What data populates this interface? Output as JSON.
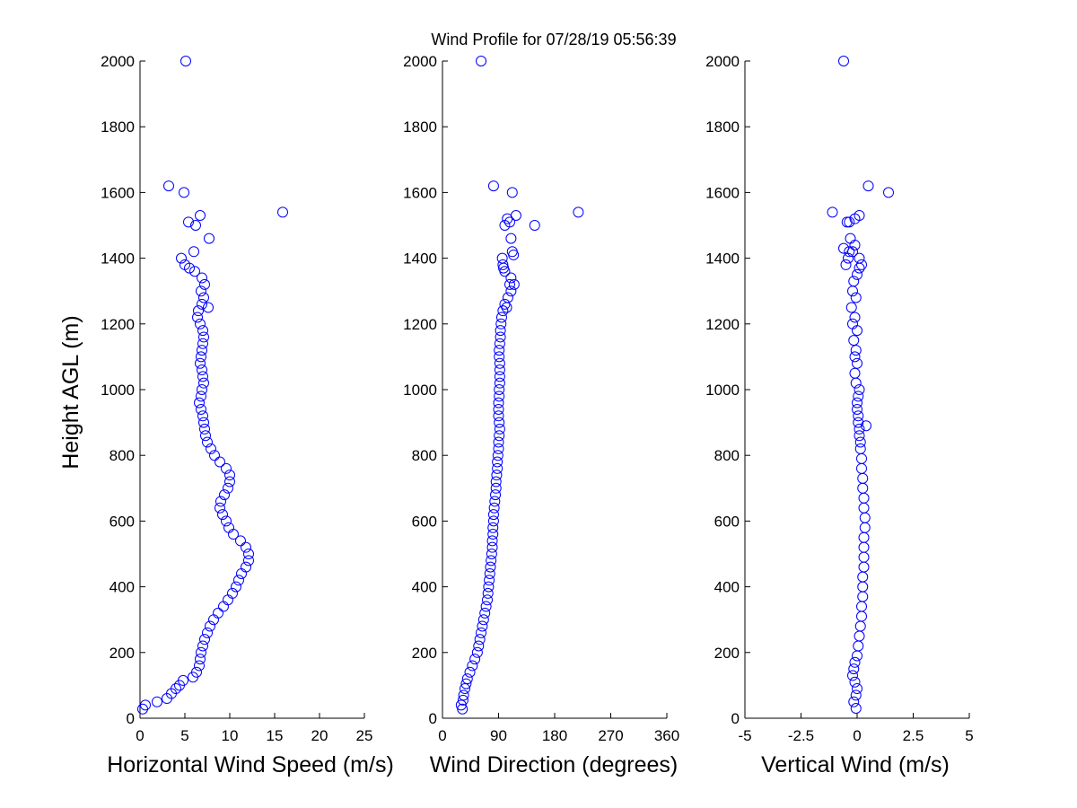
{
  "chart_data": {
    "type": "scatter",
    "title": "Wind Profile for  07/28/19 05:56:39",
    "ylabel": "Height AGL (m)",
    "ylim": [
      0,
      2000
    ],
    "yticks": [
      "0",
      "200",
      "400",
      "600",
      "800",
      "1000",
      "1200",
      "1400",
      "1600",
      "1800",
      "2000"
    ],
    "marker_color": "#0000ff",
    "panels": [
      {
        "id": "speed",
        "xlabel": "Horizontal Wind Speed (m/s)",
        "xlim": [
          0,
          25
        ],
        "xticks": [
          "0",
          "5",
          "10",
          "15",
          "20",
          "25"
        ],
        "x": [
          0.3,
          0.6,
          1.9,
          3.0,
          3.5,
          4.0,
          4.4,
          4.8,
          5.9,
          6.3,
          6.6,
          6.7,
          6.8,
          7.0,
          7.2,
          7.5,
          7.8,
          8.2,
          8.7,
          9.3,
          9.8,
          10.3,
          10.7,
          11.0,
          11.3,
          11.8,
          12.1,
          12.1,
          11.8,
          11.2,
          10.4,
          9.9,
          9.6,
          9.2,
          8.9,
          9.0,
          9.4,
          9.8,
          10.0,
          10.0,
          9.6,
          8.9,
          8.3,
          7.9,
          7.5,
          7.3,
          7.2,
          7.1,
          7.0,
          6.8,
          6.6,
          6.8,
          6.9,
          7.1,
          7.0,
          6.9,
          6.7,
          6.8,
          6.9,
          7.0,
          7.1,
          7.0,
          6.7,
          6.4,
          6.5,
          6.9,
          7.6,
          7.1,
          6.8,
          7.2,
          6.9,
          6.1,
          5.5,
          5.0,
          4.6,
          6.0,
          7.7,
          6.2,
          5.4,
          6.7,
          15.9,
          4.9,
          3.2,
          5.1
        ],
        "y": [
          28,
          40,
          50,
          60,
          75,
          90,
          100,
          115,
          125,
          140,
          160,
          180,
          200,
          220,
          240,
          260,
          280,
          300,
          320,
          340,
          360,
          380,
          400,
          420,
          440,
          460,
          480,
          500,
          520,
          540,
          560,
          580,
          600,
          620,
          640,
          660,
          680,
          700,
          720,
          740,
          760,
          780,
          800,
          820,
          840,
          860,
          880,
          900,
          920,
          940,
          960,
          980,
          1000,
          1020,
          1040,
          1060,
          1080,
          1100,
          1120,
          1140,
          1160,
          1180,
          1200,
          1220,
          1240,
          1260,
          1250,
          1280,
          1300,
          1320,
          1340,
          1360,
          1370,
          1380,
          1400,
          1420,
          1460,
          1500,
          1510,
          1530,
          1540,
          1600,
          1620,
          2000
        ]
      },
      {
        "id": "direction",
        "xlabel": "Wind Direction (degrees)",
        "xlim": [
          0,
          360
        ],
        "xticks": [
          "0",
          "90",
          "180",
          "270",
          "360"
        ],
        "x": [
          32,
          30,
          33,
          34,
          36,
          38,
          40,
          44,
          48,
          52,
          56,
          58,
          60,
          62,
          64,
          66,
          68,
          70,
          72,
          73,
          74,
          75,
          76,
          77,
          78,
          79,
          80,
          80,
          81,
          81,
          82,
          82,
          83,
          84,
          85,
          86,
          86,
          87,
          88,
          88,
          89,
          90,
          90,
          91,
          92,
          91,
          90,
          90,
          90,
          91,
          91,
          92,
          92,
          92,
          92,
          91,
          91,
          92,
          93,
          93,
          94,
          95,
          97,
          100,
          105,
          110,
          103,
          108,
          115,
          110,
          100,
          98,
          97,
          96,
          112,
          114,
          110,
          100,
          108,
          104,
          218,
          112,
          82,
          148,
          118,
          62
        ],
        "y": [
          28,
          40,
          55,
          70,
          90,
          105,
          120,
          140,
          160,
          180,
          200,
          220,
          240,
          260,
          280,
          300,
          320,
          340,
          360,
          380,
          400,
          420,
          440,
          460,
          480,
          500,
          520,
          540,
          560,
          580,
          600,
          620,
          640,
          660,
          680,
          700,
          720,
          740,
          760,
          780,
          800,
          820,
          840,
          860,
          880,
          900,
          920,
          940,
          960,
          980,
          1000,
          1020,
          1040,
          1060,
          1080,
          1100,
          1120,
          1140,
          1160,
          1180,
          1200,
          1220,
          1240,
          1260,
          1280,
          1300,
          1250,
          1320,
          1320,
          1340,
          1360,
          1370,
          1380,
          1400,
          1420,
          1410,
          1460,
          1500,
          1510,
          1520,
          1540,
          1600,
          1620,
          1500,
          1530,
          2000
        ]
      },
      {
        "id": "vertical",
        "xlabel": "Vertical Wind (m/s)",
        "xlim": [
          -5,
          5
        ],
        "xticks": [
          "-5",
          "-2.5",
          "0",
          "2.5",
          "5"
        ],
        "x": [
          -0.05,
          -0.15,
          -0.05,
          0.0,
          -0.1,
          -0.2,
          -0.15,
          -0.1,
          0.0,
          0.05,
          0.1,
          0.15,
          0.2,
          0.2,
          0.25,
          0.25,
          0.25,
          0.3,
          0.3,
          0.3,
          0.3,
          0.35,
          0.35,
          0.3,
          0.3,
          0.25,
          0.25,
          0.2,
          0.2,
          0.15,
          0.15,
          0.1,
          0.1,
          0.05,
          0.05,
          0.0,
          0.0,
          0.05,
          0.1,
          0.4,
          -0.05,
          -0.1,
          0.0,
          -0.1,
          -0.05,
          -0.15,
          0.0,
          -0.2,
          -0.1,
          -0.25,
          -0.05,
          -0.2,
          -0.15,
          0.0,
          0.1,
          0.2,
          0.1,
          -0.2,
          -0.1,
          -0.35,
          -0.4,
          -0.5,
          -0.3,
          -0.6,
          -0.1,
          -0.35,
          0.1,
          1.4,
          0.5,
          -1.1,
          -0.45,
          -0.6
        ],
        "y": [
          30,
          50,
          70,
          90,
          110,
          130,
          150,
          170,
          190,
          220,
          250,
          280,
          310,
          340,
          370,
          400,
          430,
          460,
          490,
          520,
          550,
          580,
          610,
          640,
          670,
          700,
          730,
          760,
          790,
          820,
          840,
          860,
          880,
          900,
          920,
          940,
          960,
          980,
          1000,
          890,
          1020,
          1050,
          1080,
          1100,
          1120,
          1150,
          1180,
          1200,
          1220,
          1250,
          1280,
          1300,
          1330,
          1350,
          1370,
          1380,
          1400,
          1420,
          1440,
          1420,
          1400,
          1380,
          1460,
          1430,
          1520,
          1510,
          1530,
          1600,
          1620,
          1540,
          1510,
          2000
        ]
      }
    ]
  }
}
